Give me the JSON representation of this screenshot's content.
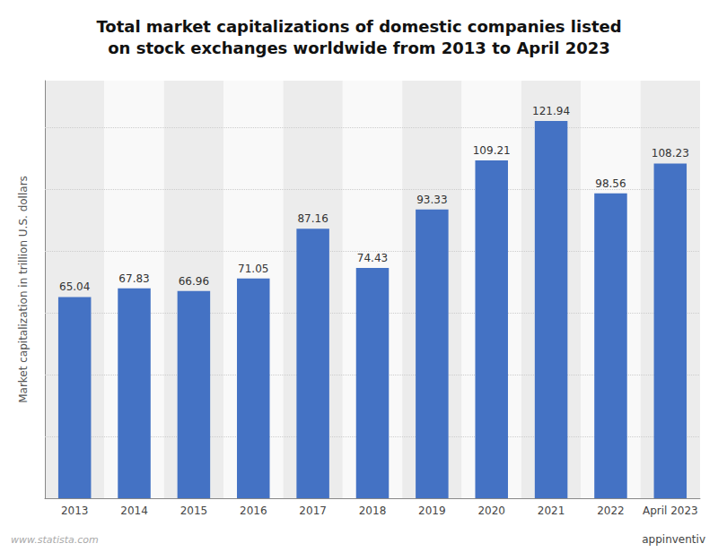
{
  "chart_data": {
    "type": "bar",
    "title": "Total market capitalizations of domestic companies listed\non stock exchanges worldwide from 2013 to April 2023",
    "ylabel": "Market capitalization in trillion U.S. dollars",
    "categories": [
      "2013",
      "2014",
      "2015",
      "2016",
      "2017",
      "2018",
      "2019",
      "2020",
      "2021",
      "2022",
      "April 2023"
    ],
    "values": [
      65.04,
      67.83,
      66.96,
      71.05,
      87.16,
      74.43,
      93.33,
      109.21,
      121.94,
      98.56,
      108.23
    ],
    "color": "#4472C4",
    "ylim": [
      0,
      135
    ],
    "yticks": [
      20,
      40,
      60,
      80,
      100,
      120
    ],
    "grid": true,
    "data_labels": true,
    "tick_labels": "x",
    "annotations": [
      "www.statista.com",
      "appinventiv"
    ]
  }
}
